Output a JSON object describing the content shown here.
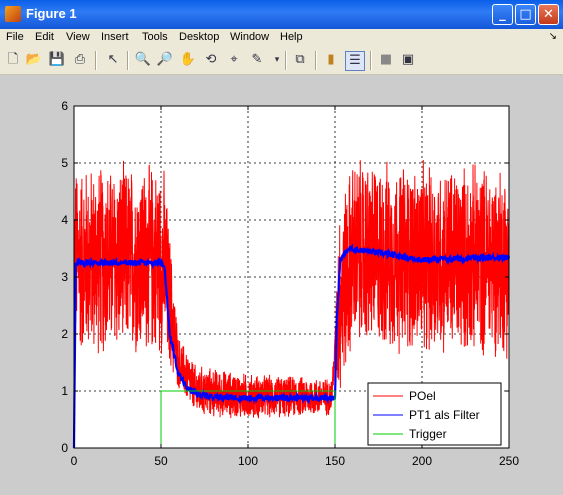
{
  "window": {
    "title": "Figure 1",
    "minimize": "_",
    "maximize": "□",
    "close": "✕"
  },
  "menu": [
    "File",
    "Edit",
    "View",
    "Insert",
    "Tools",
    "Desktop",
    "Window",
    "Help"
  ],
  "toolbar_icons": [
    "new-figure-icon",
    "open-file-icon",
    "save-icon",
    "print-icon",
    "edit-plot-arrow-icon",
    "zoom-in-icon",
    "zoom-out-icon",
    "pan-hand-icon",
    "rotate-3d-icon",
    "data-cursor-icon",
    "brush-icon",
    "brush-dropdown-icon",
    "link-plot-icon",
    "colorbar-icon",
    "legend-icon",
    "hide-plot-tools-icon",
    "show-plot-tools-icon"
  ],
  "chart_data": {
    "type": "line",
    "xlim": [
      0,
      250
    ],
    "ylim": [
      0,
      6
    ],
    "xticks": [
      0,
      50,
      100,
      150,
      200,
      250
    ],
    "yticks": [
      0,
      1,
      2,
      3,
      4,
      5,
      6
    ],
    "grid": true,
    "legend_position": "bottom-right",
    "series": [
      {
        "name": "POel",
        "color": "#ff0000",
        "description_points": [
          [
            0,
            3.3
          ],
          [
            50,
            3.3
          ],
          [
            52,
            3.2
          ],
          [
            60,
            1.5
          ],
          [
            70,
            1.0
          ],
          [
            100,
            0.9
          ],
          [
            148,
            0.9
          ],
          [
            152,
            2.5
          ],
          [
            160,
            3.4
          ],
          [
            200,
            3.3
          ],
          [
            250,
            3.3
          ]
        ],
        "noise_band": [
          [
            0,
            1.8
          ],
          [
            52,
            1.8
          ],
          [
            60,
            0.5
          ],
          [
            150,
            0.35
          ],
          [
            152,
            1.8
          ],
          [
            250,
            1.8
          ]
        ]
      },
      {
        "name": "PT1 als Filter",
        "color": "#0000ff",
        "points": [
          [
            0,
            0
          ],
          [
            1,
            3.25
          ],
          [
            50,
            3.25
          ],
          [
            52,
            3.2
          ],
          [
            55,
            2.0
          ],
          [
            60,
            1.3
          ],
          [
            65,
            1.05
          ],
          [
            70,
            0.95
          ],
          [
            80,
            0.9
          ],
          [
            100,
            0.88
          ],
          [
            150,
            0.88
          ],
          [
            151,
            2.2
          ],
          [
            153,
            3.3
          ],
          [
            158,
            3.5
          ],
          [
            170,
            3.45
          ],
          [
            200,
            3.3
          ],
          [
            250,
            3.35
          ]
        ]
      },
      {
        "name": "Trigger",
        "color": "#00cc00",
        "points": [
          [
            0,
            0
          ],
          [
            50,
            0
          ],
          [
            50,
            1
          ],
          [
            150,
            1
          ],
          [
            150,
            0
          ],
          [
            250,
            0
          ]
        ]
      }
    ]
  }
}
